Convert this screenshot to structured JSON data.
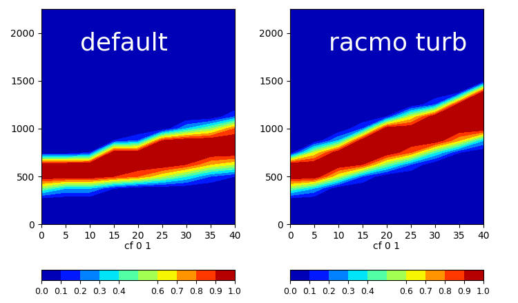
{
  "chart_data": [
    {
      "type": "heatmap",
      "title": "default",
      "xlabel": "cf 0 1",
      "x": [
        0,
        5,
        10,
        15,
        20,
        25,
        30,
        35,
        40
      ],
      "y": [
        0,
        125,
        250,
        375,
        500,
        625,
        750,
        875,
        1000,
        1125,
        1250,
        1375,
        1500,
        1625,
        1750,
        1875,
        2000,
        2125,
        2250
      ],
      "xlim": [
        0,
        40
      ],
      "xticks": [
        0,
        5,
        10,
        15,
        20,
        25,
        30,
        35,
        40
      ],
      "ylim": [
        0,
        2250
      ],
      "yticks": [
        0,
        500,
        1000,
        1500,
        2000
      ],
      "cells": [
        [
          0,
          0,
          0,
          0,
          0,
          0,
          0,
          0,
          0
        ],
        [
          0,
          0,
          0,
          0,
          0,
          0,
          0,
          0,
          0
        ],
        [
          0,
          0,
          0,
          0,
          0,
          0,
          0,
          0,
          0
        ],
        [
          0.5,
          0.3,
          0.3,
          0.1,
          0,
          0,
          0,
          0,
          0
        ],
        [
          1,
          1,
          1,
          0.9,
          0.8,
          0.6,
          0.4,
          0.2,
          0.1
        ],
        [
          1,
          1,
          1,
          1,
          1,
          1,
          0.9,
          0.7,
          0.6
        ],
        [
          0,
          0,
          0.1,
          1,
          1,
          1,
          1,
          1,
          1
        ],
        [
          0,
          0,
          0,
          0.1,
          0.2,
          0.9,
          1,
          1,
          1
        ],
        [
          0,
          0,
          0,
          0,
          0,
          0,
          0.3,
          0.5,
          0.8
        ],
        [
          0,
          0,
          0,
          0,
          0,
          0,
          0,
          0,
          0.2
        ],
        [
          0,
          0,
          0,
          0,
          0,
          0,
          0,
          0,
          0
        ],
        [
          0,
          0,
          0,
          0,
          0,
          0,
          0,
          0,
          0
        ],
        [
          0,
          0,
          0,
          0,
          0,
          0,
          0,
          0,
          0
        ],
        [
          0,
          0,
          0,
          0,
          0,
          0,
          0,
          0,
          0
        ],
        [
          0,
          0,
          0,
          0,
          0,
          0,
          0,
          0,
          0
        ],
        [
          0,
          0,
          0,
          0,
          0,
          0,
          0,
          0,
          0
        ],
        [
          0,
          0,
          0,
          0,
          0,
          0,
          0,
          0,
          0
        ],
        [
          0,
          0,
          0,
          0,
          0,
          0,
          0,
          0,
          0
        ],
        [
          0,
          0,
          0,
          0,
          0,
          0,
          0,
          0,
          0
        ]
      ],
      "colorbar_levels": [
        0.0,
        0.1,
        0.2,
        0.3,
        0.4,
        0.5,
        0.6,
        0.7,
        0.8,
        0.9,
        1.0
      ],
      "colorbar_range": [
        0.0,
        1.0
      ],
      "colorbar_ticks": [
        0.0,
        0.1,
        0.2,
        0.3,
        0.4,
        0.6,
        0.7,
        0.8,
        0.9,
        1.0
      ]
    },
    {
      "type": "heatmap",
      "title": "racmo turb",
      "xlabel": "cf 0 1",
      "x": [
        0,
        5,
        10,
        15,
        20,
        25,
        30,
        35,
        40
      ],
      "y": [
        0,
        125,
        250,
        375,
        500,
        625,
        750,
        875,
        1000,
        1125,
        1250,
        1375,
        1500,
        1625,
        1750,
        1875,
        2000,
        2125,
        2250
      ],
      "xlim": [
        0,
        40
      ],
      "xticks": [
        0,
        5,
        10,
        15,
        20,
        25,
        30,
        35,
        40
      ],
      "ylim": [
        0,
        2250
      ],
      "yticks": [
        0,
        500,
        1000,
        1500,
        2000
      ],
      "cells": [
        [
          0,
          0,
          0,
          0,
          0,
          0,
          0,
          0,
          0
        ],
        [
          0,
          0,
          0,
          0,
          0,
          0,
          0,
          0,
          0
        ],
        [
          0,
          0,
          0,
          0,
          0,
          0,
          0,
          0,
          0
        ],
        [
          0.5,
          0.3,
          0,
          0,
          0,
          0,
          0,
          0,
          0
        ],
        [
          1,
          1,
          0.6,
          0.2,
          0,
          0,
          0,
          0,
          0
        ],
        [
          1,
          1,
          1,
          0.9,
          0.5,
          0.2,
          0,
          0,
          0
        ],
        [
          0,
          0.6,
          1,
          1,
          1,
          0.8,
          0.4,
          0.1,
          0
        ],
        [
          0,
          0,
          0.3,
          1,
          1,
          1,
          1,
          0.7,
          0.3
        ],
        [
          0,
          0,
          0,
          0.2,
          1,
          1,
          1,
          1,
          1
        ],
        [
          0,
          0,
          0,
          0,
          0.1,
          0.6,
          1,
          1,
          1
        ],
        [
          0,
          0,
          0,
          0,
          0,
          0,
          0.2,
          1,
          1
        ],
        [
          0,
          0,
          0,
          0,
          0,
          0,
          0,
          0.1,
          1
        ],
        [
          0,
          0,
          0,
          0,
          0,
          0,
          0,
          0,
          0
        ],
        [
          0,
          0,
          0,
          0,
          0,
          0,
          0,
          0,
          0
        ],
        [
          0,
          0,
          0,
          0,
          0,
          0,
          0,
          0,
          0
        ],
        [
          0,
          0,
          0,
          0,
          0,
          0,
          0,
          0,
          0
        ],
        [
          0,
          0,
          0,
          0,
          0,
          0,
          0,
          0,
          0
        ],
        [
          0,
          0,
          0,
          0,
          0,
          0,
          0,
          0,
          0
        ],
        [
          0,
          0,
          0,
          0,
          0,
          0,
          0,
          0,
          0
        ]
      ],
      "colorbar_levels": [
        0.0,
        0.1,
        0.2,
        0.3,
        0.4,
        0.5,
        0.6,
        0.7,
        0.8,
        0.9,
        1.0
      ],
      "colorbar_range": [
        0.0,
        1.0
      ],
      "colorbar_ticks": [
        0.0,
        0.1,
        0.2,
        0.3,
        0.4,
        0.6,
        0.7,
        0.8,
        0.9,
        1.0
      ]
    }
  ]
}
